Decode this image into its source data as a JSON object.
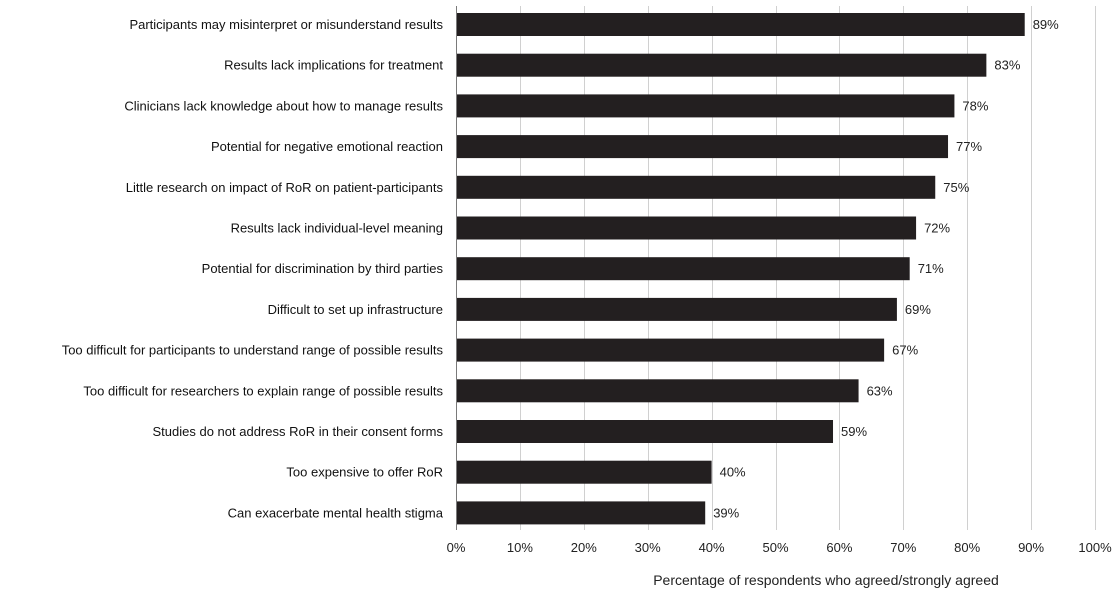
{
  "chart_data": {
    "type": "bar",
    "orientation": "horizontal",
    "categories": [
      "Participants may misinterpret or misunderstand results",
      "Results lack implications for treatment",
      "Clinicians lack knowledge about how to manage results",
      "Potential for negative emotional reaction",
      "Little research on impact of RoR on patient-participants",
      "Results lack individual-level meaning",
      "Potential for discrimination by third parties",
      "Difficult to set up infrastructure",
      "Too difficult for participants to understand range of possible results",
      "Too difficult for researchers to explain range of possible results",
      "Studies do not address RoR in their consent forms",
      "Too expensive to offer RoR",
      "Can exacerbate mental health stigma"
    ],
    "values": [
      89,
      83,
      78,
      77,
      75,
      72,
      71,
      69,
      67,
      63,
      59,
      40,
      39
    ],
    "data_labels": [
      "89%",
      "83%",
      "78%",
      "77%",
      "75%",
      "72%",
      "71%",
      "69%",
      "67%",
      "63%",
      "59%",
      "40%",
      "39%"
    ],
    "xlabel": "Percentage of respondents who agreed/strongly agreed",
    "xlim": [
      0,
      100
    ],
    "xticks": [
      0,
      10,
      20,
      30,
      40,
      50,
      60,
      70,
      80,
      90,
      100
    ],
    "xtick_labels": [
      "0%",
      "10%",
      "20%",
      "30%",
      "40%",
      "50%",
      "60%",
      "70%",
      "80%",
      "90%",
      "100%"
    ],
    "grid": true,
    "legend": "none",
    "bar_color": "#231f20"
  }
}
